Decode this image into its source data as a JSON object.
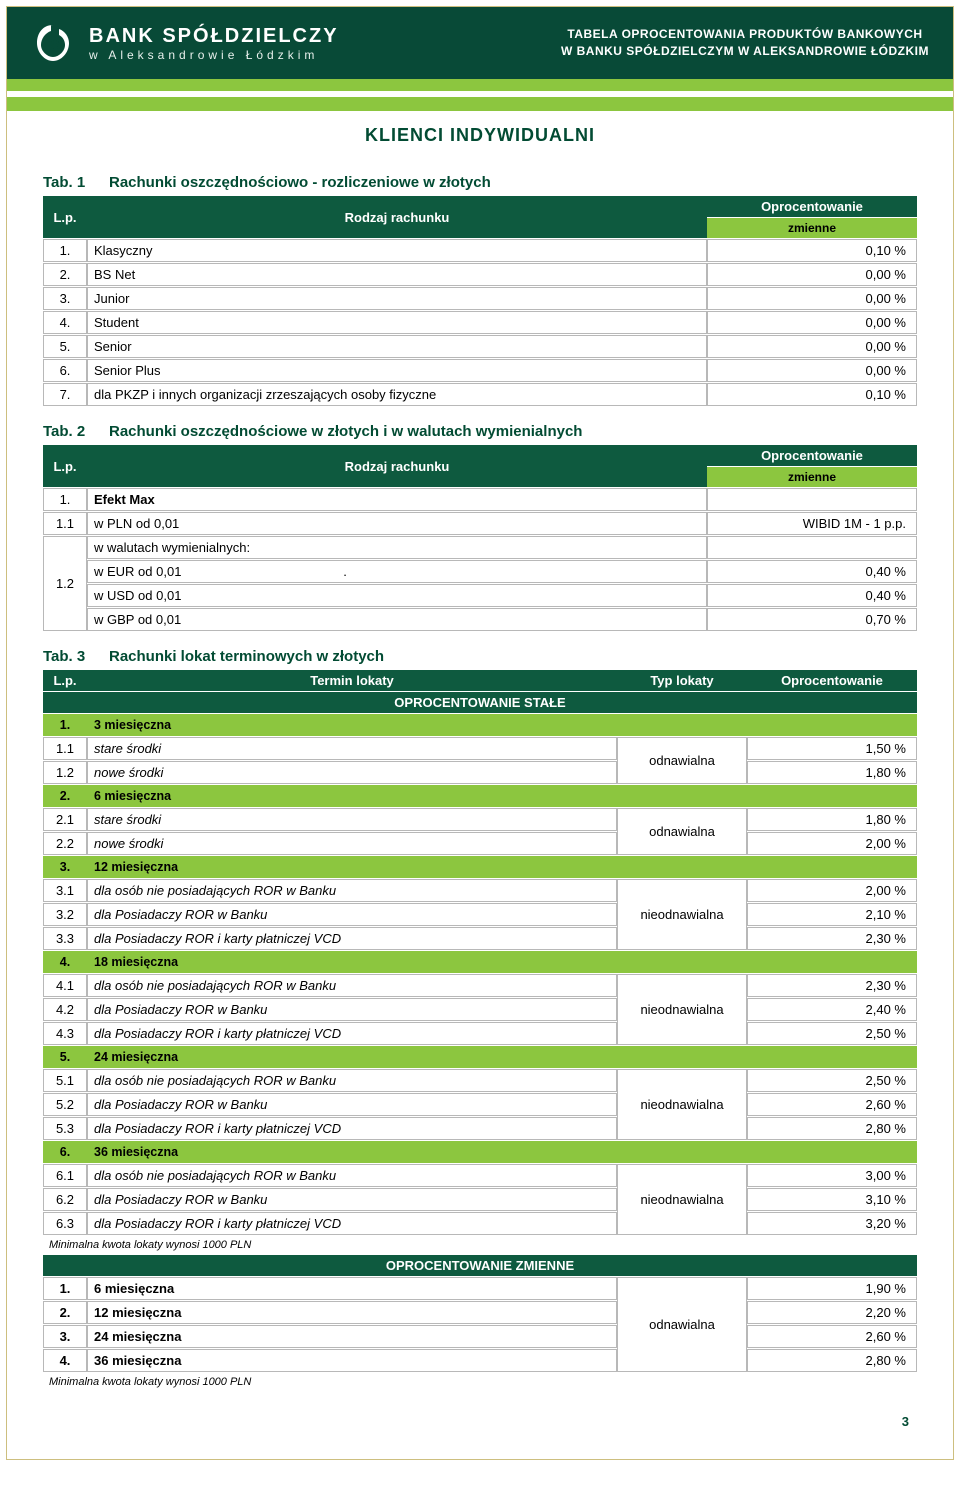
{
  "colors": {
    "dark_green": "#0e5a3f",
    "header_green": "#084a37",
    "accent_green": "#8cc63f",
    "border_gray": "#b8b8b8",
    "title_color": "#024b33",
    "page_border": "#cdbf7f"
  },
  "typography": {
    "base_font": "Arial",
    "base_size_pt": 13,
    "title_size_pt": 18
  },
  "header": {
    "bank_name": "BANK SPÓŁDZIELCZY",
    "bank_sub": "w Aleksandrowie Łódzkim",
    "right_line1": "TABELA OPROCENTOWANIA PRODUKTÓW BANKOWYCH",
    "right_line2": "W BANKU SPÓŁDZIELCZYM W ALEKSANDROWIE ŁÓDZKIM"
  },
  "page_title": "KLIENCI  INDYWIDUALNI",
  "tab1": {
    "num": "Tab. 1",
    "title": "Rachunki oszczędnościowo - rozliczeniowe w złotych",
    "col_lp": "L.p.",
    "col_rodzaj": "Rodzaj rachunku",
    "col_oproc": "Oprocentowanie",
    "col_zmienne": "zmienne",
    "rows": [
      {
        "n": "1.",
        "label": "Klasyczny",
        "rate": "0,10 %"
      },
      {
        "n": "2.",
        "label": "BS Net",
        "rate": "0,00 %"
      },
      {
        "n": "3.",
        "label": "Junior",
        "rate": "0,00 %"
      },
      {
        "n": "4.",
        "label": "Student",
        "rate": "0,00 %"
      },
      {
        "n": "5.",
        "label": "Senior",
        "rate": "0,00 %"
      },
      {
        "n": "6.",
        "label": "Senior Plus",
        "rate": "0,00 %"
      },
      {
        "n": "7.",
        "label": "dla PKZP i innych organizacji zrzeszających osoby fizyczne",
        "rate": "0,10 %"
      }
    ]
  },
  "tab2": {
    "num": "Tab. 2",
    "title": "Rachunki oszczędnościowe w złotych i w walutach wymienialnych",
    "col_lp": "L.p.",
    "col_rodzaj": "Rodzaj rachunku",
    "col_oproc": "Oprocentowanie",
    "col_zmienne": "zmienne",
    "row1_n": "1.",
    "row1_label": "Efekt Max",
    "row1_1_n": "1.1",
    "row1_1_label": "w PLN od 0,01",
    "row1_1_rate": "WIBID 1M -  1 p.p.",
    "row1_2_n": "1.2",
    "row1_2_label_hdr": "w walutach wymienialnych:",
    "row1_2_eur_lbl": "w EUR od 0,01",
    "row1_2_eur_dot": ".",
    "row1_2_eur_rate": "0,40 %",
    "row1_2_usd_lbl": "w USD od 0,01",
    "row1_2_usd_rate": "0,40 %",
    "row1_2_gbp_lbl": "w GBP od 0,01",
    "row1_2_gbp_rate": "0,70 %"
  },
  "tab3": {
    "num": "Tab. 3",
    "title": "Rachunki lokat terminowych w złotych",
    "col_lp": "L.p.",
    "col_termin": "Termin lokaty",
    "col_typ": "Typ lokaty",
    "col_oproc": "Oprocentowanie",
    "section_stale": "OPROCENTOWANIE STAŁE",
    "section_zmienne": "OPROCENTOWANIE ZMIENNE",
    "groups_stale": [
      {
        "gn": "1.",
        "glabel": "3 miesięczna",
        "type": "odnawialna",
        "rows": [
          {
            "n": "1.1",
            "label": "stare środki",
            "rate": "1,50 %"
          },
          {
            "n": "1.2",
            "label": "nowe środki",
            "rate": "1,80 %"
          }
        ]
      },
      {
        "gn": "2.",
        "glabel": "6 miesięczna",
        "type": "odnawialna",
        "rows": [
          {
            "n": "2.1",
            "label": "stare środki",
            "rate": "1,80 %"
          },
          {
            "n": "2.2",
            "label": "nowe środki",
            "rate": "2,00 %"
          }
        ]
      },
      {
        "gn": "3.",
        "glabel": "12 miesięczna",
        "type": "nieodnawialna",
        "rows": [
          {
            "n": "3.1",
            "label": "dla osób nie posiadających ROR w Banku",
            "rate": "2,00 %"
          },
          {
            "n": "3.2",
            "label": "dla Posiadaczy ROR w Banku",
            "rate": "2,10 %"
          },
          {
            "n": "3.3",
            "label": "dla Posiadaczy ROR i karty płatniczej VCD",
            "rate": "2,30 %"
          }
        ]
      },
      {
        "gn": "4.",
        "glabel": "18 miesięczna",
        "type": "nieodnawialna",
        "rows": [
          {
            "n": "4.1",
            "label": "dla osób nie posiadających ROR w Banku",
            "rate": "2,30 %"
          },
          {
            "n": "4.2",
            "label": "dla Posiadaczy ROR w Banku",
            "rate": "2,40 %"
          },
          {
            "n": "4.3",
            "label": "dla Posiadaczy ROR i karty płatniczej VCD",
            "rate": "2,50 %"
          }
        ]
      },
      {
        "gn": "5.",
        "glabel": "24 miesięczna",
        "type": "nieodnawialna",
        "rows": [
          {
            "n": "5.1",
            "label": "dla osób nie posiadających ROR w Banku",
            "rate": "2,50 %"
          },
          {
            "n": "5.2",
            "label": "dla Posiadaczy ROR w Banku",
            "rate": "2,60 %"
          },
          {
            "n": "5.3",
            "label": "dla Posiadaczy ROR i karty płatniczej VCD",
            "rate": "2,80 %"
          }
        ]
      },
      {
        "gn": "6.",
        "glabel": "36 miesięczna",
        "type": "nieodnawialna",
        "rows": [
          {
            "n": "6.1",
            "label": "dla osób nie posiadających ROR w Banku",
            "rate": "3,00 %"
          },
          {
            "n": "6.2",
            "label": "dla Posiadaczy ROR w Banku",
            "rate": "3,10 %"
          },
          {
            "n": "6.3",
            "label": "dla Posiadaczy ROR i karty płatniczej VCD",
            "rate": "3,20 %"
          }
        ]
      }
    ],
    "footnote": "Minimalna kwota lokaty wynosi 1000 PLN",
    "zmienne_rows": [
      {
        "n": "1.",
        "label": "6 miesięczna",
        "rate": "1,90 %"
      },
      {
        "n": "2.",
        "label": "12 miesięczna",
        "rate": "2,20 %"
      },
      {
        "n": "3.",
        "label": "24 miesięczna",
        "rate": "2,60 %"
      },
      {
        "n": "4.",
        "label": "36 miesięczna",
        "rate": "2,80 %"
      }
    ],
    "zmienne_type": "odnawialna"
  },
  "page_number": "3"
}
